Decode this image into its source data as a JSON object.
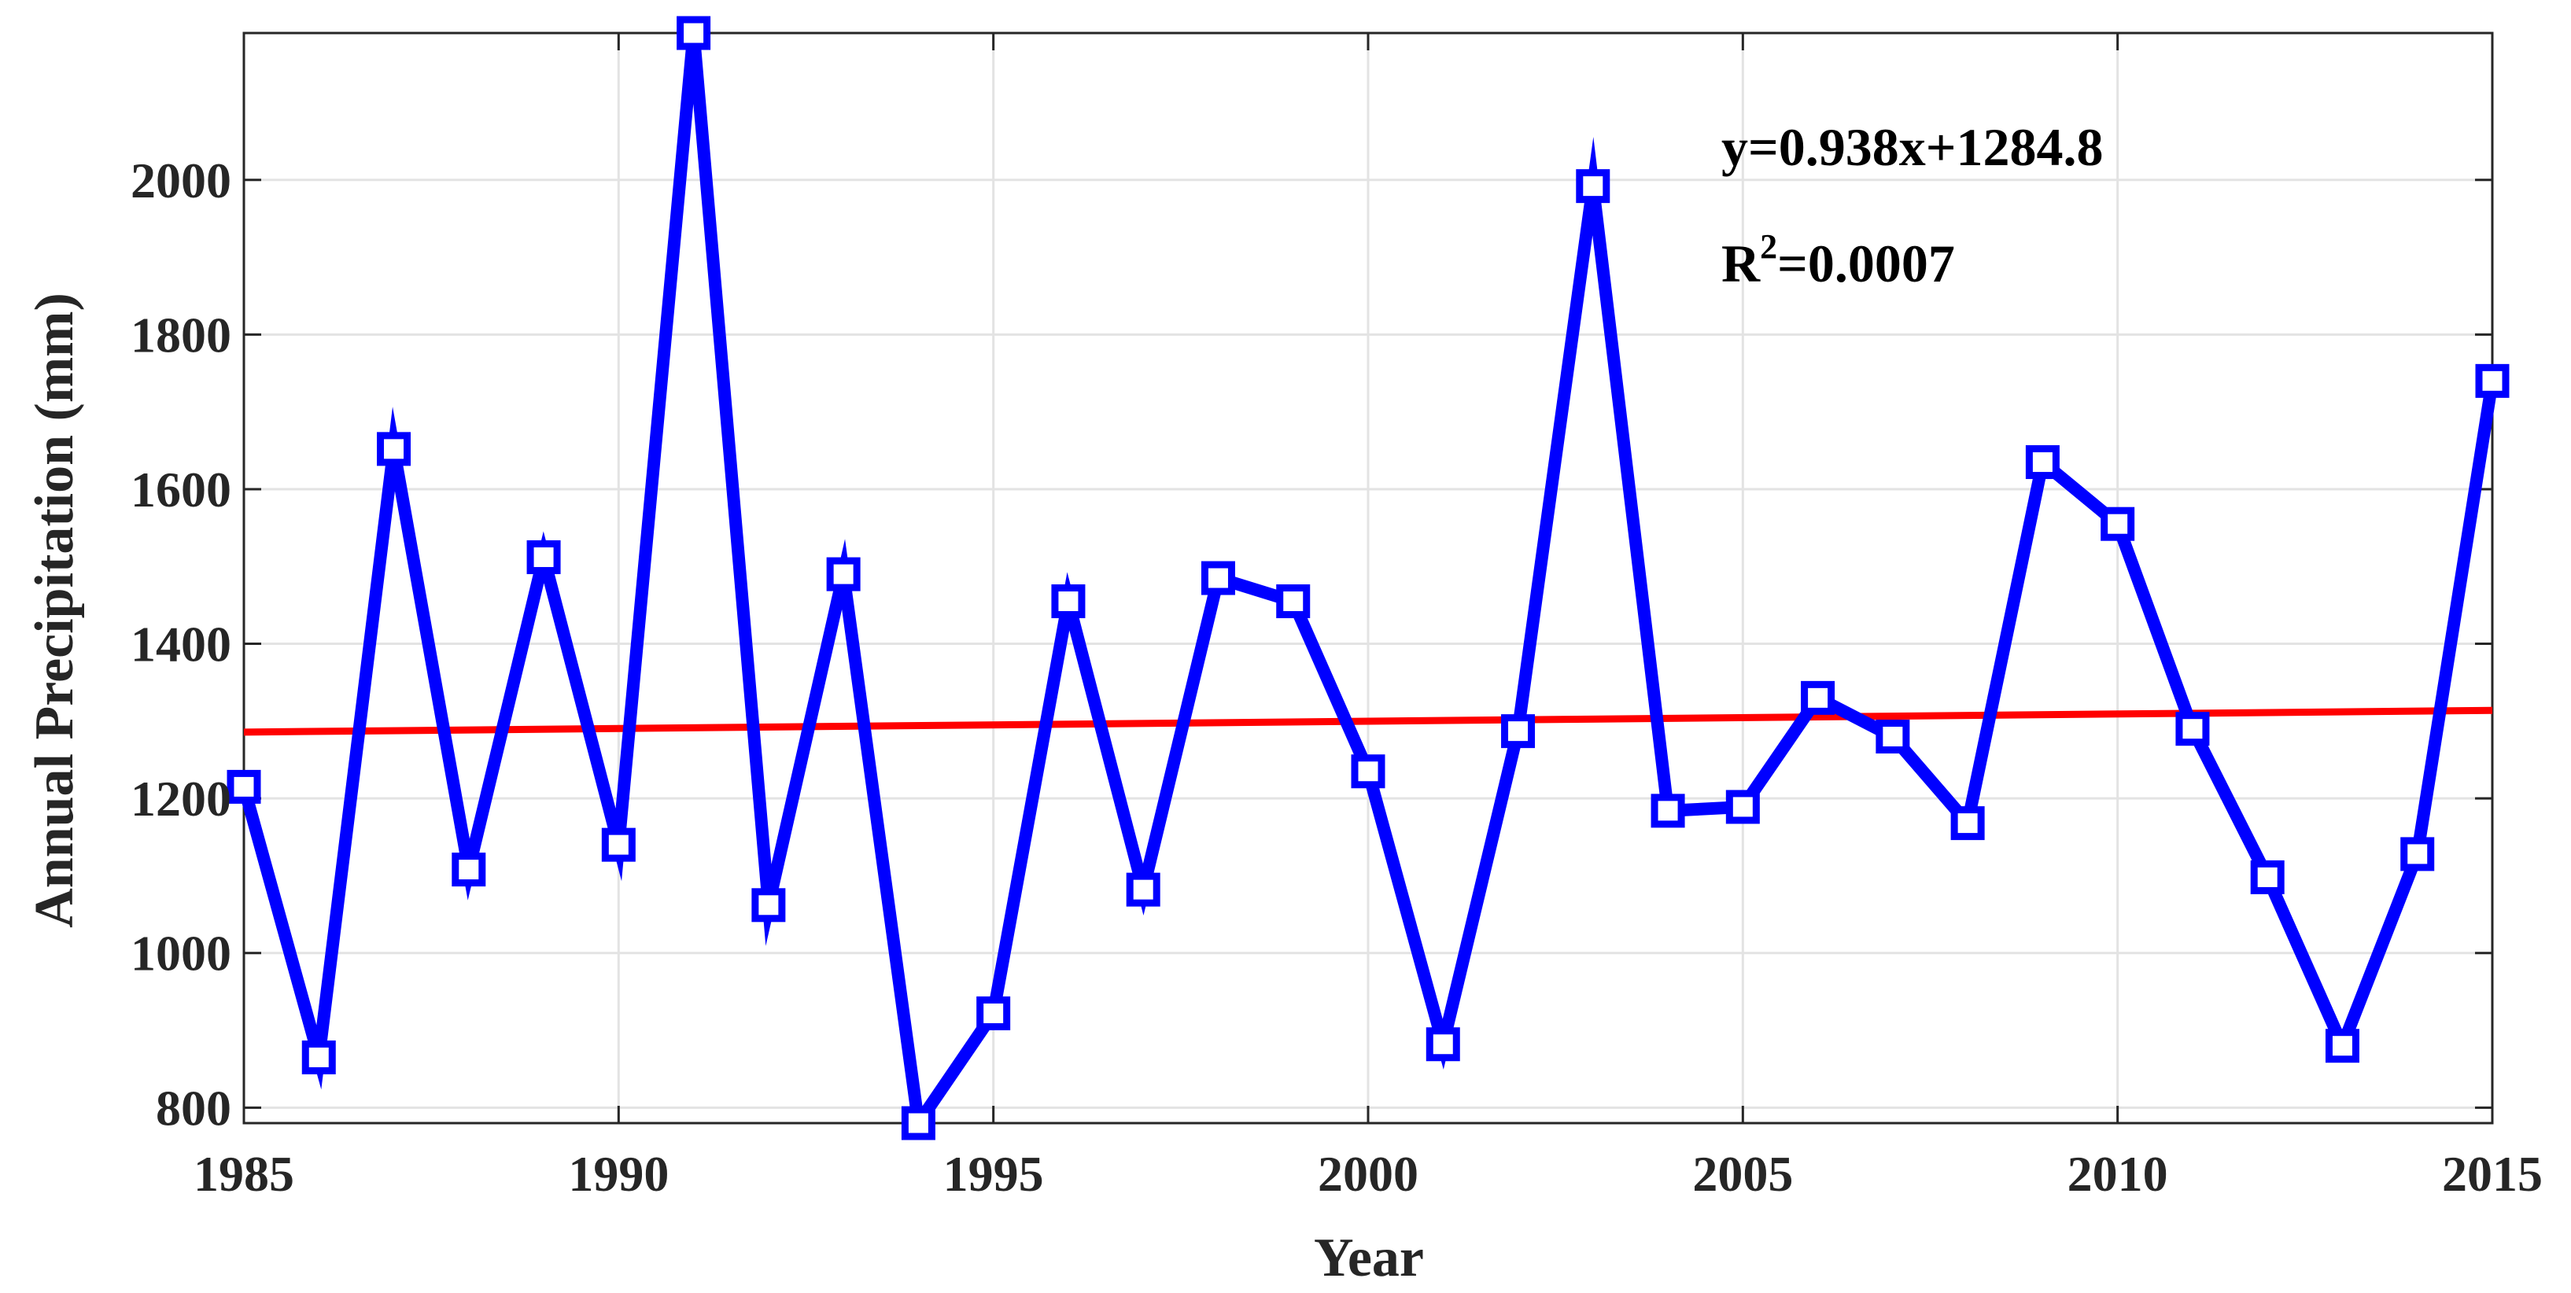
{
  "chart_data": {
    "type": "line",
    "xlabel": "Year",
    "ylabel": "Annual Precipitation (mm)",
    "xlim": [
      1985,
      2015
    ],
    "ylim": [
      780,
      2190
    ],
    "xticks": [
      1985,
      1990,
      1995,
      2000,
      2005,
      2010,
      2015
    ],
    "yticks": [
      800,
      1000,
      1200,
      1400,
      1600,
      1800,
      2000
    ],
    "grid": true,
    "colors": {
      "series": "#0000ff",
      "trend": "#ff0000",
      "grid": "#e3e3e3",
      "axis": "#262626"
    },
    "series": [
      {
        "marker": "square",
        "x": [
          1985,
          1986,
          1987,
          1988,
          1989,
          1990,
          1991,
          1992,
          1993,
          1994,
          1995,
          1996,
          1997,
          1998,
          1999,
          2000,
          2001,
          2002,
          2003,
          2004,
          2005,
          2006,
          2007,
          2008,
          2009,
          2010,
          2011,
          2012,
          2013,
          2014,
          2015
        ],
        "values": [
          1215,
          865,
          1652,
          1108,
          1512,
          1140,
          2190,
          1062,
          1490,
          780,
          922,
          1455,
          1082,
          1485,
          1455,
          1235,
          882,
          1287,
          1992,
          1184,
          1189,
          1330,
          1280,
          1168,
          1635,
          1555,
          1290,
          1098,
          880,
          1128,
          1740
        ]
      }
    ],
    "trendline": {
      "slope": 0.938,
      "intercept": 1284.8,
      "equation": "y=0.938x+1284.8",
      "r2_prefix": "R",
      "r2_sup": "2",
      "r2_value": "=0.0007"
    }
  }
}
